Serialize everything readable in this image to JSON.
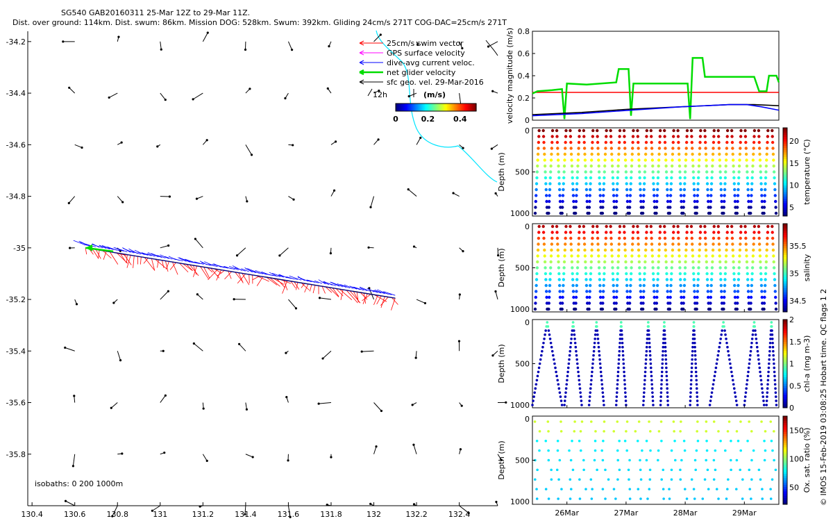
{
  "header": {
    "line1": "SG540 GAB20160311 25-Mar 12Z to 29-Mar 11Z.",
    "line2": "Dist. over ground: 114km. Dist. swum: 86km. Mission DOG: 528km. Swum: 392km. Gliding 24cm/s 271T COG-DAC=25cm/s 271T"
  },
  "map": {
    "legend": [
      {
        "label": "25cm/s swim vector",
        "color": "#ff0000"
      },
      {
        "label": "GPS surface velocity",
        "color": "#ff00ff"
      },
      {
        "label": "dive-avg current veloc.",
        "color": "#0000ff"
      },
      {
        "label": "net glider velocity",
        "color": "#00dd00"
      },
      {
        "label": "sfc geo. vel. 29-Mar-2016",
        "color": "#000000"
      }
    ],
    "scale_label": "12h",
    "colorbar": {
      "title": "(m/s)",
      "ticks": [
        "0",
        "0.2",
        "0.4"
      ],
      "range": [
        0,
        0.5
      ]
    },
    "isobaths_label": "isobaths: 0   200  1000m",
    "x_ticks": [
      "130.4",
      "130.6",
      "130.8",
      "131",
      "131.2",
      "131.4",
      "131.6",
      "131.8",
      "132",
      "132.2",
      "132.4"
    ],
    "y_ticks": [
      "-34.2",
      "-34.4",
      "-34.6",
      "-34.8",
      "-35",
      "-35.2",
      "-35.4",
      "-35.6",
      "-35.8"
    ],
    "xlim": [
      130.38,
      132.58
    ],
    "ylim": [
      -36.0,
      -34.16
    ],
    "track": {
      "start": [
        132.1,
        -35.195
      ],
      "end": [
        130.65,
        -35.0
      ]
    }
  },
  "velocity_panel": {
    "ylabel": "velocity magnitude (m/s)",
    "y_ticks": [
      "0",
      "0.2",
      "0.4",
      "0.6",
      "0.8"
    ],
    "ylim": [
      0,
      0.8
    ],
    "series": [
      {
        "color": "#ff0000",
        "values": [
          [
            0,
            0.25
          ],
          [
            1,
            0.25
          ]
        ]
      },
      {
        "color": "#00dd00",
        "values": [
          [
            0,
            0.24
          ],
          [
            0.02,
            0.26
          ],
          [
            0.08,
            0.27
          ],
          [
            0.12,
            0.28
          ],
          [
            0.13,
            0.01
          ],
          [
            0.14,
            0.33
          ],
          [
            0.22,
            0.32
          ],
          [
            0.34,
            0.34
          ],
          [
            0.35,
            0.46
          ],
          [
            0.39,
            0.46
          ],
          [
            0.4,
            0.04
          ],
          [
            0.41,
            0.33
          ],
          [
            0.5,
            0.33
          ],
          [
            0.63,
            0.33
          ],
          [
            0.64,
            0.01
          ],
          [
            0.65,
            0.56
          ],
          [
            0.69,
            0.56
          ],
          [
            0.7,
            0.39
          ],
          [
            0.8,
            0.39
          ],
          [
            0.9,
            0.39
          ],
          [
            0.92,
            0.26
          ],
          [
            0.95,
            0.26
          ],
          [
            0.96,
            0.4
          ],
          [
            0.99,
            0.4
          ],
          [
            1.0,
            0.34
          ]
        ]
      },
      {
        "color": "#000000",
        "values": [
          [
            0,
            0.05
          ],
          [
            0.2,
            0.07
          ],
          [
            0.4,
            0.1
          ],
          [
            0.6,
            0.12
          ],
          [
            0.8,
            0.14
          ],
          [
            0.9,
            0.14
          ],
          [
            1.0,
            0.13
          ]
        ]
      },
      {
        "color": "#0000ff",
        "values": [
          [
            0,
            0.04
          ],
          [
            0.2,
            0.06
          ],
          [
            0.4,
            0.09
          ],
          [
            0.6,
            0.12
          ],
          [
            0.8,
            0.14
          ],
          [
            0.87,
            0.14
          ],
          [
            0.93,
            0.12
          ],
          [
            1.0,
            0.09
          ]
        ]
      }
    ]
  },
  "profile_panels": [
    {
      "colorbar_label": "temperature (°C)",
      "cb_ticks": [
        "5",
        "10",
        "15",
        "20"
      ],
      "cb_range": [
        3,
        23
      ],
      "kind": "temp"
    },
    {
      "colorbar_label": "salinity",
      "cb_ticks": [
        "34.5",
        "35",
        "35.5"
      ],
      "cb_range": [
        34.3,
        35.9
      ],
      "kind": "sal"
    },
    {
      "colorbar_label": "chl-a (mg m-3)",
      "cb_ticks": [
        "0",
        "0.5",
        "1",
        "1.5",
        "2"
      ],
      "cb_range": [
        0,
        2
      ],
      "kind": "chl"
    },
    {
      "colorbar_label": "Ox. sat. ratio (%)",
      "cb_ticks": [
        "50",
        "100",
        "150"
      ],
      "cb_range": [
        20,
        175
      ],
      "kind": "ox"
    }
  ],
  "depth_label": "Depth (m)",
  "depth_ticks": [
    "0",
    "500",
    "1000"
  ],
  "date_ticks": [
    "26Mar",
    "27Mar",
    "28Mar",
    "29Mar"
  ],
  "side_note": "© IMOS 15-Feb-2019 03:08:25 Hobart time. QC flags 1  2"
}
